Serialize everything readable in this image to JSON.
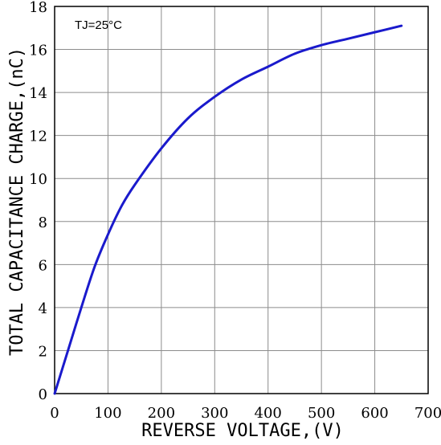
{
  "chart_data": {
    "type": "line",
    "annotation": "TJ=25°C",
    "xlabel": "REVERSE VOLTAGE,(V)",
    "ylabel": "TOTAL CAPACITANCE CHARGE,(nC)",
    "xlim": [
      0,
      700
    ],
    "ylim": [
      0,
      18
    ],
    "xticks": [
      "0",
      "100",
      "200",
      "300",
      "400",
      "500",
      "600",
      "700"
    ],
    "yticks": [
      "0",
      "2",
      "4",
      "6",
      "8",
      "10",
      "12",
      "14",
      "16",
      "18"
    ],
    "grid": true,
    "series": [
      {
        "color": "#1a1acc",
        "x": [
          0,
          10,
          25,
          50,
          75,
          100,
          125,
          150,
          200,
          250,
          300,
          350,
          400,
          450,
          500,
          550,
          600,
          650
        ],
        "y": [
          0,
          0.8,
          2.0,
          4.0,
          5.9,
          7.4,
          8.7,
          9.7,
          11.4,
          12.8,
          13.8,
          14.6,
          15.2,
          15.8,
          16.2,
          16.5,
          16.8,
          17.1
        ]
      }
    ]
  }
}
